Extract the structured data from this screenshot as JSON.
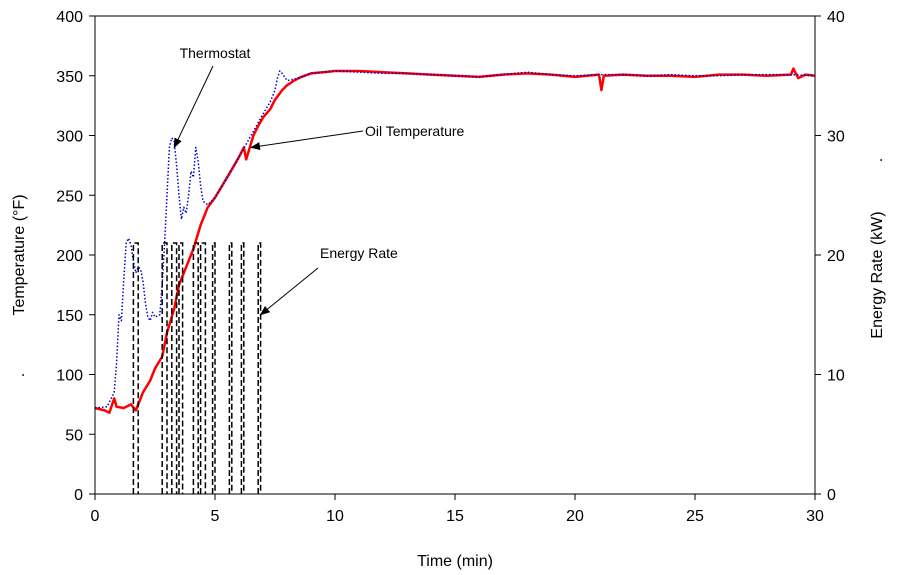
{
  "chart_data": {
    "type": "line",
    "title": "",
    "xlabel": "Time (min)",
    "ylabel": "Temperature (°F)",
    "ylabel_suffix": ".",
    "y2label": "Energy Rate (kW)",
    "y2label_suffix": ".",
    "xlim": [
      0,
      30
    ],
    "ylim": [
      0,
      400
    ],
    "y2lim": [
      0,
      40
    ],
    "x_ticks": [
      "0",
      "5",
      "10",
      "15",
      "20",
      "25",
      "30"
    ],
    "y_ticks": [
      "0",
      "50",
      "100",
      "150",
      "200",
      "250",
      "300",
      "350",
      "400"
    ],
    "y2_ticks": [
      "0",
      "10",
      "20",
      "30",
      "40"
    ],
    "grid": false,
    "series": [
      {
        "name": "Oil Temperature",
        "axis": "left",
        "color": "#ff0000",
        "style": "solid",
        "points": [
          [
            0.0,
            72
          ],
          [
            0.4,
            70
          ],
          [
            0.6,
            68
          ],
          [
            0.8,
            80
          ],
          [
            0.9,
            73
          ],
          [
            1.2,
            72
          ],
          [
            1.5,
            75
          ],
          [
            1.7,
            70
          ],
          [
            2.0,
            85
          ],
          [
            2.3,
            95
          ],
          [
            2.5,
            105
          ],
          [
            2.8,
            115
          ],
          [
            3.0,
            135
          ],
          [
            3.3,
            155
          ],
          [
            3.5,
            175
          ],
          [
            3.8,
            190
          ],
          [
            4.1,
            205
          ],
          [
            4.4,
            225
          ],
          [
            4.7,
            240
          ],
          [
            5.0,
            248
          ],
          [
            5.3,
            258
          ],
          [
            5.6,
            268
          ],
          [
            6.0,
            282
          ],
          [
            6.2,
            290
          ],
          [
            6.3,
            280
          ],
          [
            6.6,
            300
          ],
          [
            6.8,
            308
          ],
          [
            7.0,
            315
          ],
          [
            7.3,
            322
          ],
          [
            7.5,
            330
          ],
          [
            7.8,
            338
          ],
          [
            8.0,
            342
          ],
          [
            8.3,
            346
          ],
          [
            8.6,
            349
          ],
          [
            9.0,
            352
          ],
          [
            9.5,
            353
          ],
          [
            10.0,
            354
          ],
          [
            11.0,
            354
          ],
          [
            12.0,
            353
          ],
          [
            13.0,
            352
          ],
          [
            14.0,
            351
          ],
          [
            15.0,
            350
          ],
          [
            16.0,
            349
          ],
          [
            17.0,
            351
          ],
          [
            18.0,
            352
          ],
          [
            19.0,
            351
          ],
          [
            20.0,
            349
          ],
          [
            21.0,
            351
          ],
          [
            21.1,
            338
          ],
          [
            21.2,
            350
          ],
          [
            22.0,
            351
          ],
          [
            23.0,
            350
          ],
          [
            24.0,
            350
          ],
          [
            25.0,
            349
          ],
          [
            26.0,
            351
          ],
          [
            27.0,
            351
          ],
          [
            28.0,
            350
          ],
          [
            29.0,
            351
          ],
          [
            29.1,
            356
          ],
          [
            29.3,
            348
          ],
          [
            29.6,
            351
          ],
          [
            30.0,
            350
          ]
        ]
      },
      {
        "name": "Thermostat",
        "axis": "left",
        "color": "#0000cc",
        "style": "dotted",
        "points": [
          [
            0.0,
            72
          ],
          [
            0.5,
            73
          ],
          [
            0.8,
            85
          ],
          [
            0.9,
            110
          ],
          [
            1.0,
            150
          ],
          [
            1.1,
            145
          ],
          [
            1.2,
            180
          ],
          [
            1.3,
            210
          ],
          [
            1.4,
            214
          ],
          [
            1.5,
            208
          ],
          [
            1.6,
            195
          ],
          [
            1.7,
            185
          ],
          [
            1.8,
            190
          ],
          [
            1.9,
            188
          ],
          [
            2.0,
            178
          ],
          [
            2.1,
            160
          ],
          [
            2.2,
            148
          ],
          [
            2.3,
            145
          ],
          [
            2.4,
            152
          ],
          [
            2.5,
            148
          ],
          [
            2.7,
            150
          ],
          [
            2.8,
            175
          ],
          [
            2.9,
            210
          ],
          [
            3.0,
            250
          ],
          [
            3.1,
            290
          ],
          [
            3.2,
            298
          ],
          [
            3.3,
            295
          ],
          [
            3.4,
            275
          ],
          [
            3.5,
            250
          ],
          [
            3.6,
            230
          ],
          [
            3.7,
            240
          ],
          [
            3.8,
            235
          ],
          [
            3.9,
            250
          ],
          [
            4.0,
            270
          ],
          [
            4.1,
            265
          ],
          [
            4.2,
            290
          ],
          [
            4.3,
            278
          ],
          [
            4.4,
            258
          ],
          [
            4.5,
            245
          ],
          [
            4.7,
            242
          ],
          [
            5.0,
            248
          ],
          [
            5.3,
            258
          ],
          [
            5.7,
            272
          ],
          [
            6.0,
            282
          ],
          [
            6.5,
            300
          ],
          [
            7.0,
            318
          ],
          [
            7.3,
            328
          ],
          [
            7.5,
            338
          ],
          [
            7.6,
            348
          ],
          [
            7.7,
            354
          ],
          [
            7.8,
            352
          ],
          [
            8.0,
            346
          ],
          [
            8.3,
            347
          ],
          [
            8.6,
            349
          ],
          [
            9.0,
            352
          ],
          [
            10.0,
            354
          ],
          [
            11.0,
            353
          ],
          [
            12.0,
            352
          ],
          [
            13.0,
            352
          ],
          [
            14.0,
            351
          ],
          [
            15.0,
            350
          ],
          [
            16.0,
            349
          ],
          [
            17.0,
            351
          ],
          [
            18.0,
            353
          ],
          [
            19.0,
            351
          ],
          [
            20.0,
            350
          ],
          [
            21.0,
            351
          ],
          [
            22.0,
            351
          ],
          [
            23.0,
            350
          ],
          [
            24.0,
            351
          ],
          [
            25.0,
            350
          ],
          [
            26.0,
            350
          ],
          [
            27.0,
            351
          ],
          [
            28.0,
            351
          ],
          [
            29.0,
            351
          ],
          [
            30.0,
            350
          ]
        ]
      },
      {
        "name": "Energy Rate",
        "axis": "right",
        "color": "#000000",
        "style": "dashed",
        "on_level": 21,
        "pulses": [
          [
            1.6,
            1.8
          ],
          [
            2.8,
            3.0
          ],
          [
            3.2,
            3.4
          ],
          [
            3.5,
            3.65
          ],
          [
            4.1,
            4.3
          ],
          [
            4.4,
            4.6
          ],
          [
            4.9,
            5.0
          ],
          [
            5.6,
            5.7
          ],
          [
            6.1,
            6.2
          ],
          [
            6.8,
            6.9
          ]
        ]
      }
    ],
    "annotations": [
      {
        "label": "Thermostat",
        "series": "Thermostat",
        "point_to": [
          3.3,
          290
        ]
      },
      {
        "label": "Oil Temperature",
        "series": "Oil Temperature",
        "point_to": [
          6.5,
          290
        ]
      },
      {
        "label": "Energy Rate",
        "series": "Energy Rate",
        "point_to": [
          6.9,
          150
        ]
      }
    ]
  }
}
